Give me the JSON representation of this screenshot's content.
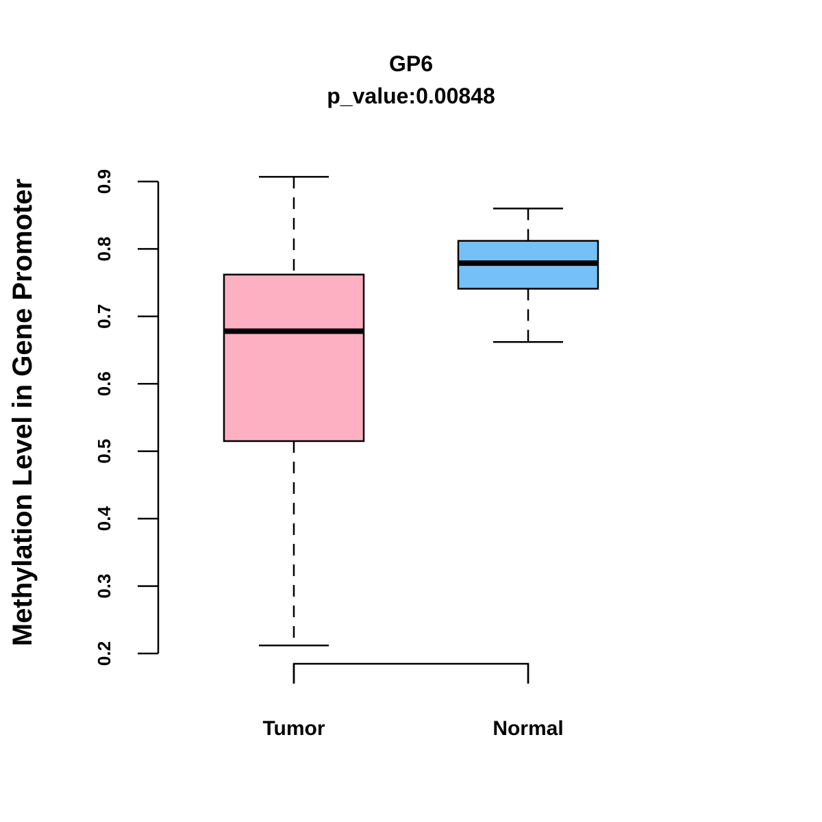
{
  "chart_data": {
    "type": "boxplot",
    "title": "GP6",
    "subtitle": "p_value:0.00848",
    "xlabel": "",
    "ylabel": "Methylation Level in Gene Promoter",
    "ylim": [
      0.2,
      0.9
    ],
    "yticks": [
      "0.2",
      "0.3",
      "0.4",
      "0.5",
      "0.6",
      "0.7",
      "0.8",
      "0.9"
    ],
    "categories": [
      "Tumor",
      "Normal"
    ],
    "boxes": [
      {
        "name": "Tumor",
        "whisker_low": 0.212,
        "q1": 0.515,
        "median": 0.678,
        "q3": 0.762,
        "whisker_high": 0.907,
        "color": "#FDB0C2"
      },
      {
        "name": "Normal",
        "whisker_low": 0.662,
        "q1": 0.741,
        "median": 0.779,
        "q3": 0.812,
        "whisker_high": 0.86,
        "color": "#75C1F7"
      }
    ],
    "grid": false
  }
}
